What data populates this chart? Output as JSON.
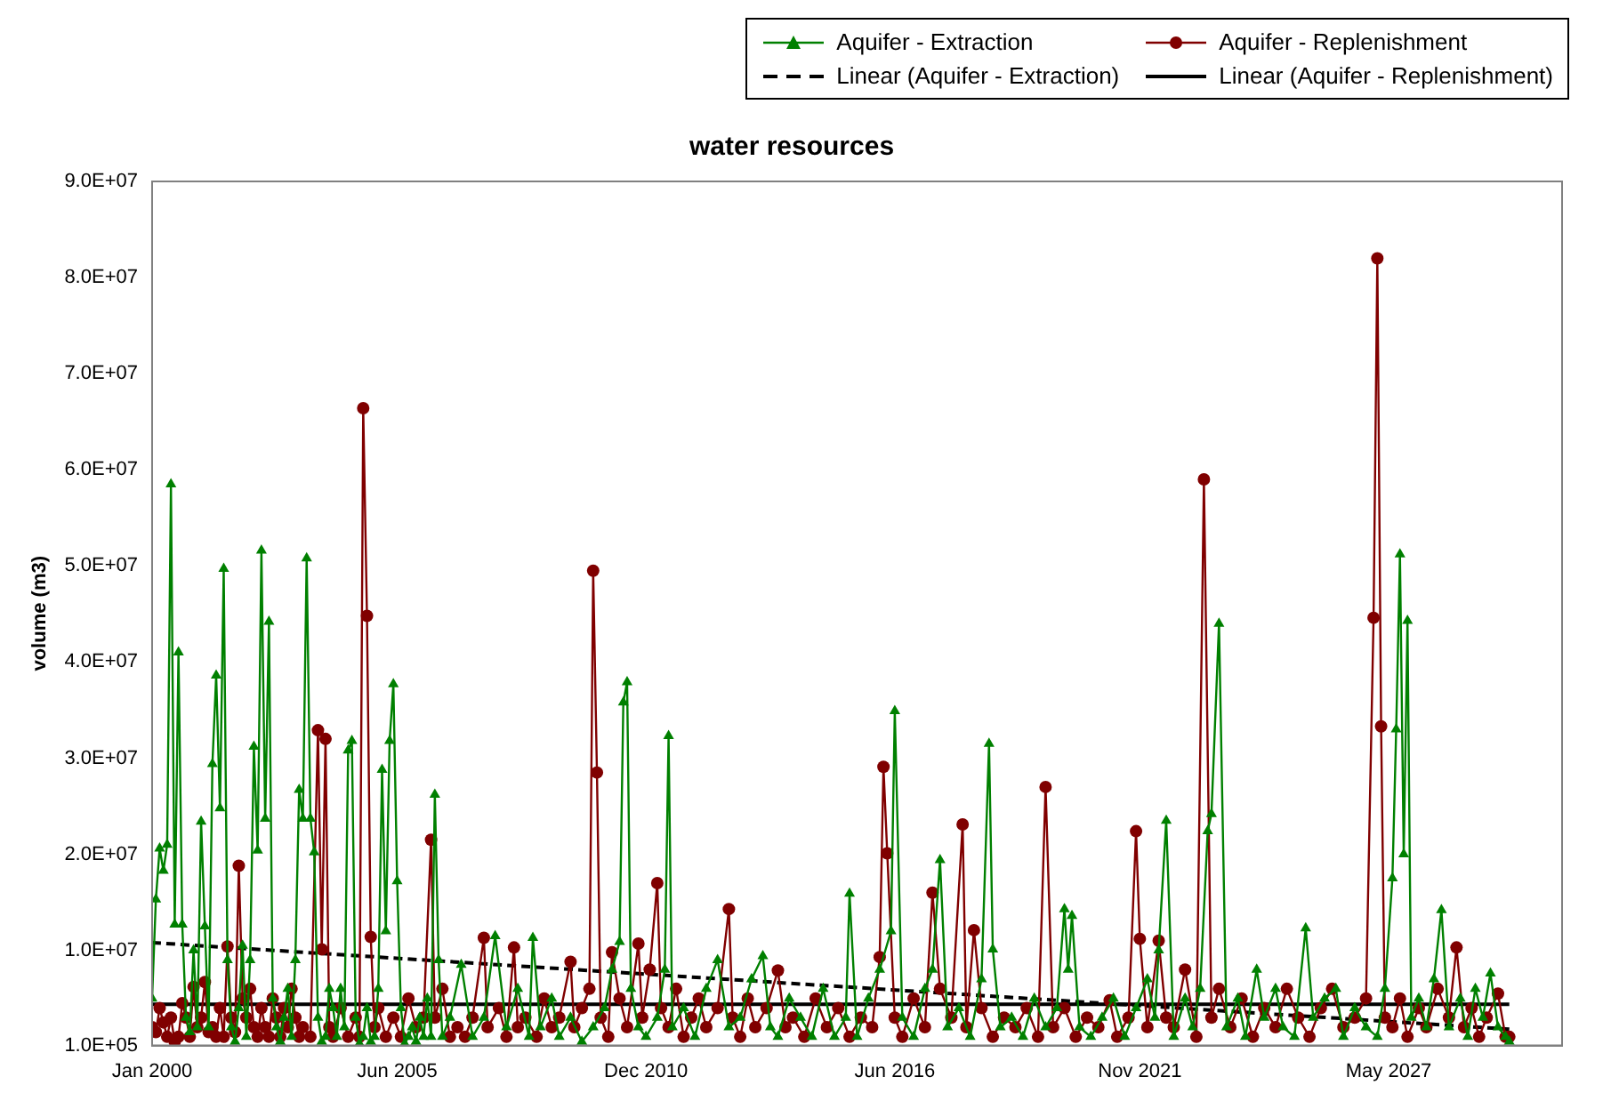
{
  "chart_data": {
    "type": "line",
    "title": "water resources",
    "ylabel": "volume (m3)",
    "xlim": [
      "2000-01",
      "2031-03"
    ],
    "xticks": [
      {
        "value": "2000-01",
        "label": "Jan 2000"
      },
      {
        "value": "2005-06",
        "label": "Jun 2005"
      },
      {
        "value": "2010-12",
        "label": "Dec 2010"
      },
      {
        "value": "2016-06",
        "label": "Jun 2016"
      },
      {
        "value": "2021-11",
        "label": "Nov 2021"
      },
      {
        "value": "2027-05",
        "label": "May 2027"
      }
    ],
    "ylim": [
      100000,
      90000000
    ],
    "yticks": [
      {
        "value": 100000,
        "label": "1.0E+05"
      },
      {
        "value": 10000000,
        "label": "1.0E+07"
      },
      {
        "value": 20000000,
        "label": "2.0E+07"
      },
      {
        "value": 30000000,
        "label": "3.0E+07"
      },
      {
        "value": 40000000,
        "label": "4.0E+07"
      },
      {
        "value": 50000000,
        "label": "5.0E+07"
      },
      {
        "value": 60000000,
        "label": "6.0E+07"
      },
      {
        "value": 70000000,
        "label": "7.0E+07"
      },
      {
        "value": 80000000,
        "label": "8.0E+07"
      },
      {
        "value": 90000000,
        "label": "9.0E+07"
      }
    ],
    "legend": "top right",
    "series": [
      {
        "name": "Aquifer - Extraction",
        "color": "#008000",
        "marker": "triangle",
        "line_style": "solid",
        "x": [
          "2000-01",
          "2000-02",
          "2000-03",
          "2000-04",
          "2000-05",
          "2000-06",
          "2000-07",
          "2000-08",
          "2000-09",
          "2000-10",
          "2000-11",
          "2000-12",
          "2001-01",
          "2001-02",
          "2001-03",
          "2001-04",
          "2001-05",
          "2001-06",
          "2001-07",
          "2001-08",
          "2001-09",
          "2001-10",
          "2001-11",
          "2001-12",
          "2002-01",
          "2002-02",
          "2002-03",
          "2002-04",
          "2002-05",
          "2002-06",
          "2002-07",
          "2002-08",
          "2002-09",
          "2002-10",
          "2002-11",
          "2002-12",
          "2003-01",
          "2003-02",
          "2003-03",
          "2003-04",
          "2003-05",
          "2003-06",
          "2003-07",
          "2003-08",
          "2003-09",
          "2003-10",
          "2003-11",
          "2003-12",
          "2004-01",
          "2004-02",
          "2004-03",
          "2004-04",
          "2004-05",
          "2004-06",
          "2004-07",
          "2004-08",
          "2004-09",
          "2004-10",
          "2004-11",
          "2004-12",
          "2005-01",
          "2005-02",
          "2005-03",
          "2005-04",
          "2005-05",
          "2005-06",
          "2005-07",
          "2005-08",
          "2005-09",
          "2005-10",
          "2005-11",
          "2005-12",
          "2006-01",
          "2006-02",
          "2006-03",
          "2006-04",
          "2006-05",
          "2006-06",
          "2006-08",
          "2006-11",
          "2007-02",
          "2007-05",
          "2007-08",
          "2007-11",
          "2008-02",
          "2008-05",
          "2008-06",
          "2008-08",
          "2008-11",
          "2009-01",
          "2009-04",
          "2009-07",
          "2009-10",
          "2010-01",
          "2010-03",
          "2010-05",
          "2010-06",
          "2010-07",
          "2010-08",
          "2010-10",
          "2010-12",
          "2011-03",
          "2011-05",
          "2011-06",
          "2011-07",
          "2011-10",
          "2012-01",
          "2012-04",
          "2012-07",
          "2012-10",
          "2013-01",
          "2013-04",
          "2013-07",
          "2013-09",
          "2013-11",
          "2014-02",
          "2014-05",
          "2014-08",
          "2014-11",
          "2015-02",
          "2015-05",
          "2015-06",
          "2015-08",
          "2015-11",
          "2016-02",
          "2016-05",
          "2016-06",
          "2016-08",
          "2016-11",
          "2017-02",
          "2017-04",
          "2017-06",
          "2017-08",
          "2017-11",
          "2018-02",
          "2018-05",
          "2018-07",
          "2018-08",
          "2018-10",
          "2019-01",
          "2019-04",
          "2019-07",
          "2019-10",
          "2020-01",
          "2020-03",
          "2020-04",
          "2020-05",
          "2020-07",
          "2020-10",
          "2021-01",
          "2021-04",
          "2021-07",
          "2021-10",
          "2022-01",
          "2022-03",
          "2022-04",
          "2022-06",
          "2022-08",
          "2022-11",
          "2023-01",
          "2023-03",
          "2023-05",
          "2023-06",
          "2023-08",
          "2023-10",
          "2024-01",
          "2024-03",
          "2024-06",
          "2024-08",
          "2024-11",
          "2025-01",
          "2025-04",
          "2025-07",
          "2025-09",
          "2025-12",
          "2026-03",
          "2026-05",
          "2026-08",
          "2026-11",
          "2027-02",
          "2027-04",
          "2027-06",
          "2027-07",
          "2027-08",
          "2027-09",
          "2027-10",
          "2027-11",
          "2028-01",
          "2028-03",
          "2028-05",
          "2028-07",
          "2028-09",
          "2028-12",
          "2029-02",
          "2029-04",
          "2029-06",
          "2029-08",
          "2029-10",
          "2029-12",
          "2030-01"
        ],
        "values": [
          5000000,
          15300000,
          20600000,
          18300000,
          21000000,
          58500000,
          12700000,
          41000000,
          12700000,
          3000000,
          1500000,
          10000000,
          2000000,
          23400000,
          12500000,
          2000000,
          29400000,
          38600000,
          24800000,
          49700000,
          9000000,
          2000000,
          500000,
          4000000,
          10500000,
          1000000,
          9000000,
          31200000,
          20400000,
          51600000,
          23700000,
          44200000,
          5000000,
          2000000,
          500000,
          3000000,
          6000000,
          1000000,
          9000000,
          26700000,
          23700000,
          50800000,
          23700000,
          20200000,
          3000000,
          500000,
          1000000,
          6000000,
          4000000,
          1000000,
          6000000,
          2000000,
          30800000,
          31800000,
          3000000,
          300000,
          1000000,
          4000000,
          500000,
          1000000,
          6000000,
          28800000,
          12000000,
          31800000,
          37700000,
          17200000,
          4000000,
          300000,
          1000000,
          2000000,
          500000,
          3000000,
          1000000,
          5000000,
          1000000,
          26200000,
          9000000,
          1000000,
          3000000,
          8500000,
          1000000,
          3000000,
          11500000,
          2000000,
          6000000,
          1000000,
          11300000,
          2000000,
          5000000,
          1000000,
          3000000,
          500000,
          2000000,
          4000000,
          8000000,
          10900000,
          35800000,
          37900000,
          6000000,
          2000000,
          1000000,
          3000000,
          8000000,
          32300000,
          2000000,
          4000000,
          1000000,
          6000000,
          9000000,
          2000000,
          3000000,
          7000000,
          9400000,
          2000000,
          1000000,
          5000000,
          3000000,
          1000000,
          6000000,
          1000000,
          3000000,
          15900000,
          1000000,
          5000000,
          8000000,
          12000000,
          34900000,
          3000000,
          1000000,
          6000000,
          8000000,
          19400000,
          2000000,
          4000000,
          1000000,
          7000000,
          31500000,
          10100000,
          2000000,
          3000000,
          1000000,
          5000000,
          2000000,
          4000000,
          14300000,
          8000000,
          13600000,
          2000000,
          1000000,
          3000000,
          5000000,
          1000000,
          4000000,
          7000000,
          3000000,
          10000000,
          23500000,
          1000000,
          5000000,
          2000000,
          6000000,
          22400000,
          24200000,
          44000000,
          2000000,
          5000000,
          1000000,
          8000000,
          3000000,
          6000000,
          2000000,
          1000000,
          12300000,
          3000000,
          5000000,
          6000000,
          1000000,
          4000000,
          2000000,
          1000000,
          6000000,
          17500000,
          33000000,
          51200000,
          20000000,
          44300000,
          3000000,
          5000000,
          2000000,
          7000000,
          14200000,
          2000000,
          5000000,
          1000000,
          6000000,
          3000000,
          7600000,
          2000000,
          1000000,
          500000
        ]
      },
      {
        "name": "Aquifer - Replenishment",
        "color": "#800000",
        "marker": "circle",
        "line_style": "solid",
        "x": [
          "2000-01",
          "2000-02",
          "2000-03",
          "2000-04",
          "2000-05",
          "2000-06",
          "2000-07",
          "2000-08",
          "2000-09",
          "2000-10",
          "2000-11",
          "2000-12",
          "2001-01",
          "2001-02",
          "2001-03",
          "2001-04",
          "2001-05",
          "2001-06",
          "2001-07",
          "2001-08",
          "2001-09",
          "2001-10",
          "2001-11",
          "2001-12",
          "2002-01",
          "2002-02",
          "2002-03",
          "2002-04",
          "2002-05",
          "2002-06",
          "2002-07",
          "2002-08",
          "2002-09",
          "2002-10",
          "2002-11",
          "2002-12",
          "2003-01",
          "2003-02",
          "2003-03",
          "2003-04",
          "2003-05",
          "2003-07",
          "2003-09",
          "2003-10",
          "2003-11",
          "2003-12",
          "2004-01",
          "2004-03",
          "2004-05",
          "2004-07",
          "2004-08",
          "2004-09",
          "2004-10",
          "2004-11",
          "2004-12",
          "2005-01",
          "2005-03",
          "2005-05",
          "2005-07",
          "2005-09",
          "2005-11",
          "2006-01",
          "2006-03",
          "2006-04",
          "2006-06",
          "2006-08",
          "2006-10",
          "2006-12",
          "2007-02",
          "2007-05",
          "2007-06",
          "2007-09",
          "2007-11",
          "2008-01",
          "2008-02",
          "2008-04",
          "2008-07",
          "2008-09",
          "2008-11",
          "2009-01",
          "2009-04",
          "2009-05",
          "2009-07",
          "2009-09",
          "2009-10",
          "2009-11",
          "2009-12",
          "2010-02",
          "2010-03",
          "2010-05",
          "2010-07",
          "2010-10",
          "2010-11",
          "2011-01",
          "2011-03",
          "2011-04",
          "2011-06",
          "2011-08",
          "2011-10",
          "2011-12",
          "2012-02",
          "2012-04",
          "2012-07",
          "2012-10",
          "2012-11",
          "2013-01",
          "2013-03",
          "2013-05",
          "2013-08",
          "2013-11",
          "2014-01",
          "2014-03",
          "2014-06",
          "2014-09",
          "2014-12",
          "2015-03",
          "2015-06",
          "2015-09",
          "2015-12",
          "2016-02",
          "2016-03",
          "2016-04",
          "2016-06",
          "2016-08",
          "2016-11",
          "2017-02",
          "2017-04",
          "2017-06",
          "2017-09",
          "2017-12",
          "2018-01",
          "2018-03",
          "2018-05",
          "2018-08",
          "2018-11",
          "2019-02",
          "2019-05",
          "2019-08",
          "2019-10",
          "2019-12",
          "2020-03",
          "2020-06",
          "2020-09",
          "2020-12",
          "2021-03",
          "2021-05",
          "2021-08",
          "2021-10",
          "2021-11",
          "2022-01",
          "2022-04",
          "2022-06",
          "2022-08",
          "2022-11",
          "2023-02",
          "2023-04",
          "2023-06",
          "2023-08",
          "2023-11",
          "2024-02",
          "2024-05",
          "2024-08",
          "2024-11",
          "2025-02",
          "2025-05",
          "2025-08",
          "2025-11",
          "2026-02",
          "2026-05",
          "2026-08",
          "2026-11",
          "2027-01",
          "2027-02",
          "2027-03",
          "2027-04",
          "2027-06",
          "2027-08",
          "2027-10",
          "2028-01",
          "2028-03",
          "2028-06",
          "2028-09",
          "2028-11",
          "2029-01",
          "2029-03",
          "2029-05",
          "2029-07",
          "2029-10",
          "2029-12",
          "2030-01"
        ],
        "values": [
          2000000,
          1500000,
          4000000,
          2500000,
          1000000,
          3000000,
          500000,
          1000000,
          4500000,
          3000000,
          1000000,
          6200000,
          2000000,
          3000000,
          6700000,
          1500000,
          2000000,
          1000000,
          4000000,
          1000000,
          10400000,
          3000000,
          1500000,
          18800000,
          5000000,
          3000000,
          6000000,
          2000000,
          1000000,
          4000000,
          2000000,
          1000000,
          5000000,
          3000000,
          1000000,
          4000000,
          2000000,
          6000000,
          3000000,
          1000000,
          2000000,
          1000000,
          32900000,
          10100000,
          32000000,
          2000000,
          1000000,
          4000000,
          1000000,
          3000000,
          1000000,
          66400000,
          44800000,
          11400000,
          2000000,
          4000000,
          1000000,
          3000000,
          1000000,
          5000000,
          2000000,
          3000000,
          21500000,
          3000000,
          6000000,
          1000000,
          2000000,
          1000000,
          3000000,
          11300000,
          2000000,
          4000000,
          1000000,
          10300000,
          2000000,
          3000000,
          1000000,
          5000000,
          2000000,
          3000000,
          8800000,
          2000000,
          4000000,
          6000000,
          49500000,
          28500000,
          3000000,
          1000000,
          9800000,
          5000000,
          2000000,
          10700000,
          3000000,
          8000000,
          17000000,
          4000000,
          2000000,
          6000000,
          1000000,
          3000000,
          5000000,
          2000000,
          4000000,
          14300000,
          3000000,
          1000000,
          5000000,
          2000000,
          4000000,
          7900000,
          2000000,
          3000000,
          1000000,
          5000000,
          2000000,
          4000000,
          1000000,
          3000000,
          2000000,
          9300000,
          29100000,
          20100000,
          3000000,
          1000000,
          5000000,
          2000000,
          16000000,
          6000000,
          3000000,
          23100000,
          2000000,
          12100000,
          4000000,
          1000000,
          3000000,
          2000000,
          4000000,
          1000000,
          27000000,
          2000000,
          4000000,
          1000000,
          3000000,
          2000000,
          4800000,
          1000000,
          3000000,
          22400000,
          11200000,
          2000000,
          11000000,
          3000000,
          2000000,
          8000000,
          1000000,
          59000000,
          3000000,
          6000000,
          2000000,
          5000000,
          1000000,
          4000000,
          2000000,
          6000000,
          3000000,
          1000000,
          4000000,
          6000000,
          2000000,
          3000000,
          5000000,
          44600000,
          82000000,
          33300000,
          3000000,
          2000000,
          5000000,
          1000000,
          4000000,
          2000000,
          6000000,
          3000000,
          10300000,
          2000000,
          4000000,
          1000000,
          3000000,
          5500000,
          1000000,
          1000000
        ]
      },
      {
        "name": "Linear (Aquifer - Extraction)",
        "color": "#000000",
        "marker": "none",
        "line_style": "dashed",
        "x": [
          "2000-01",
          "2030-01"
        ],
        "values": [
          10800000,
          1800000
        ]
      },
      {
        "name": "Linear (Aquifer - Replenishment)",
        "color": "#000000",
        "marker": "none",
        "line_style": "solid",
        "x": [
          "2000-01",
          "2030-01"
        ],
        "values": [
          4400000,
          4400000
        ]
      }
    ]
  }
}
